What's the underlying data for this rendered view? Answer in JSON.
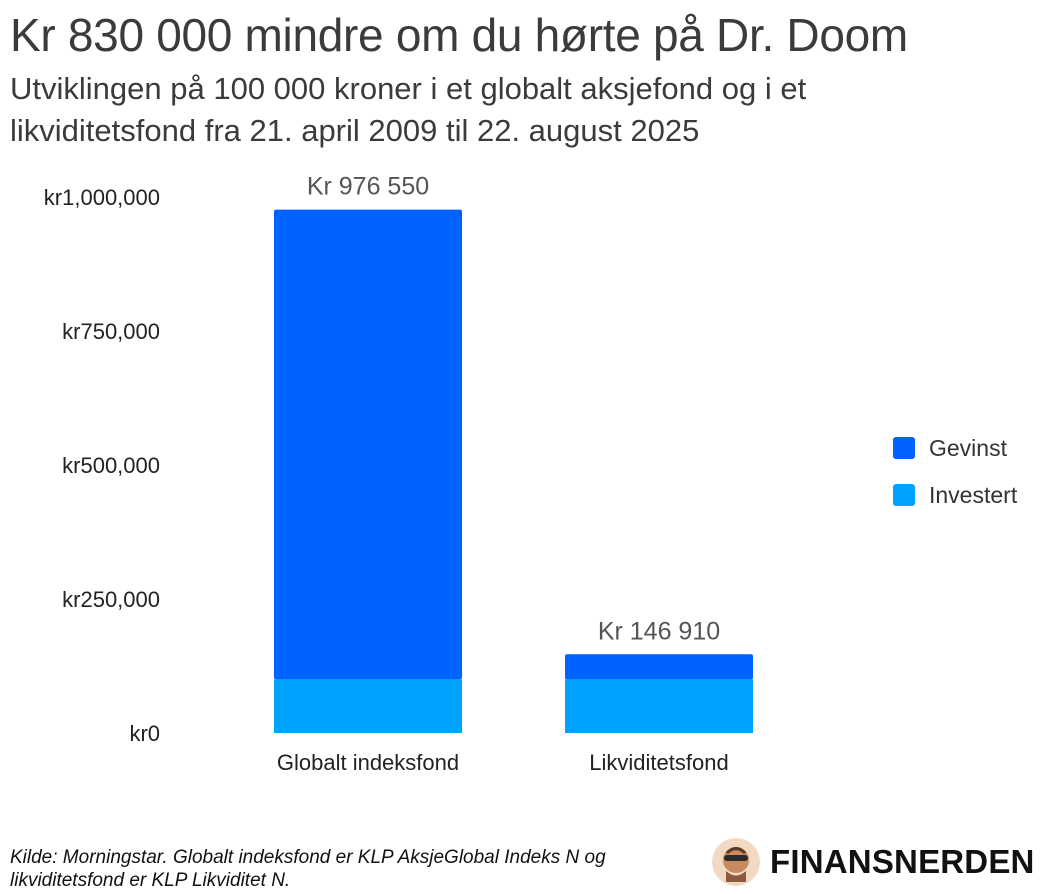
{
  "header": {
    "title": "Kr 830 000 mindre om du hørte på Dr. Doom",
    "subtitle": "Utviklingen på 100 000 kroner i et globalt aksjefond og i et likviditetsfond fra 21. april 2009 til 22. august 2025"
  },
  "chart_data": {
    "type": "bar",
    "stacked": true,
    "categories": [
      "Globalt indeksfond",
      "Likviditetsfond"
    ],
    "series": [
      {
        "name": "Investert",
        "values": [
          100000,
          100000
        ],
        "color": "#00a2ff"
      },
      {
        "name": "Gevinst",
        "values": [
          876550,
          46910
        ],
        "color": "#0062ff"
      }
    ],
    "totals": [
      976550,
      146910
    ],
    "total_labels": [
      "Kr 976 550",
      "Kr 146 910"
    ],
    "ylim": [
      0,
      1000000
    ],
    "yticks": [
      0,
      250000,
      500000,
      750000,
      1000000
    ],
    "ytick_labels": [
      "kr0",
      "kr250,000",
      "kr500,000",
      "kr750,000",
      "kr1,000,000"
    ],
    "grid": false,
    "legend_position": "right"
  },
  "legend": {
    "items": [
      {
        "label": "Gevinst",
        "color": "#0062ff"
      },
      {
        "label": "Investert",
        "color": "#00a2ff"
      }
    ]
  },
  "footer": {
    "source": "Kilde: Morningstar. Globalt indeksfond er KLP AksjeGlobal Indeks N og likviditetsfond er KLP Likviditet N.",
    "brand": "FINANSNERDEN"
  }
}
